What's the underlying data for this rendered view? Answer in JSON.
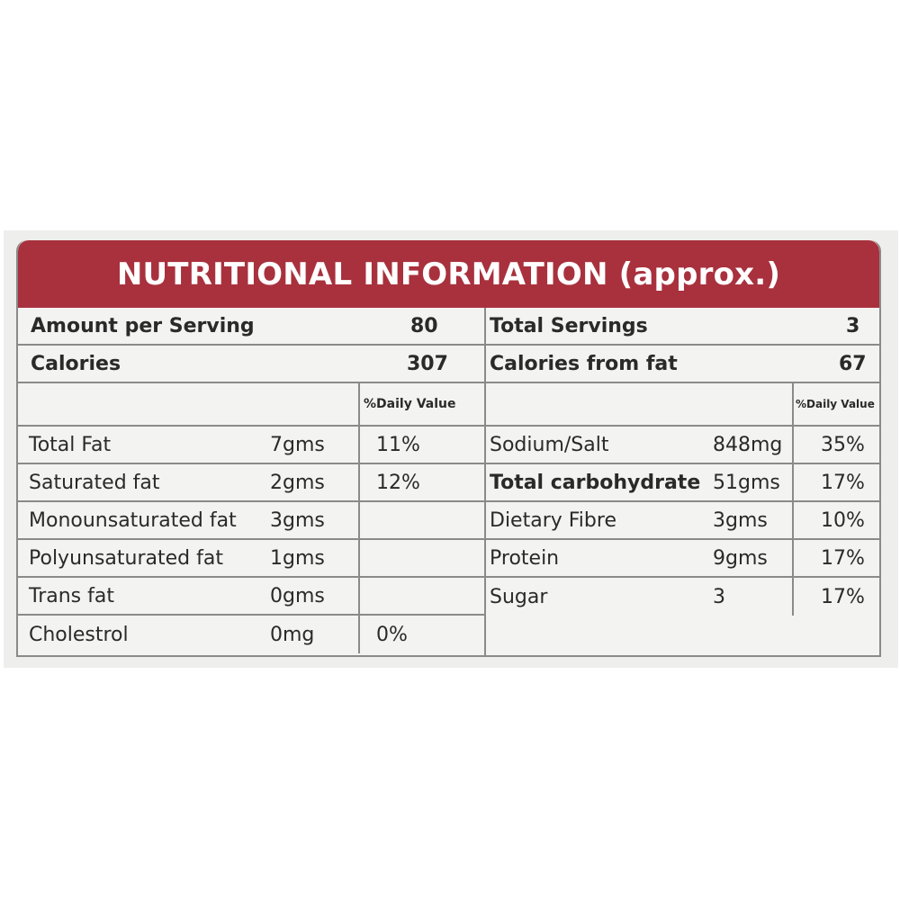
{
  "title": "NUTRITIONAL INFORMATION",
  "title_suffix": "(approx.)",
  "colors": {
    "banner": "#a8313d",
    "border": "#8a8a8a",
    "background": "#f3f3f1"
  },
  "left": {
    "amount_label": "Amount per Serving",
    "amount_value": "80",
    "calories_label": "Calories",
    "calories_value": "307",
    "dv_header": "%Daily Value",
    "rows": [
      {
        "name": "Total Fat",
        "amount": "7gms",
        "dv": "11%"
      },
      {
        "name": "Saturated fat",
        "amount": "2gms",
        "dv": "12%"
      },
      {
        "name": "Monounsaturated fat",
        "amount": "3gms",
        "dv": ""
      },
      {
        "name": "Polyunsaturated fat",
        "amount": "1gms",
        "dv": ""
      },
      {
        "name": "Trans fat",
        "amount": "0gms",
        "dv": ""
      },
      {
        "name": "Cholestrol",
        "amount": "0mg",
        "dv": "0%"
      }
    ]
  },
  "right": {
    "servings_label": "Total Servings",
    "servings_value": "3",
    "fat_calories_label": "Calories from fat",
    "fat_calories_value": "67",
    "dv_header": "%Daily Value",
    "rows": [
      {
        "name": "Sodium/Salt",
        "amount": "848mg",
        "dv": "35%"
      },
      {
        "name": "Total carbohydrate",
        "amount": "51gms",
        "dv": "17%"
      },
      {
        "name": "Dietary Fibre",
        "amount": "3gms",
        "dv": "10%"
      },
      {
        "name": "Protein",
        "amount": "9gms",
        "dv": "17%"
      },
      {
        "name": "Sugar",
        "amount": "3",
        "dv": "17%"
      }
    ]
  }
}
